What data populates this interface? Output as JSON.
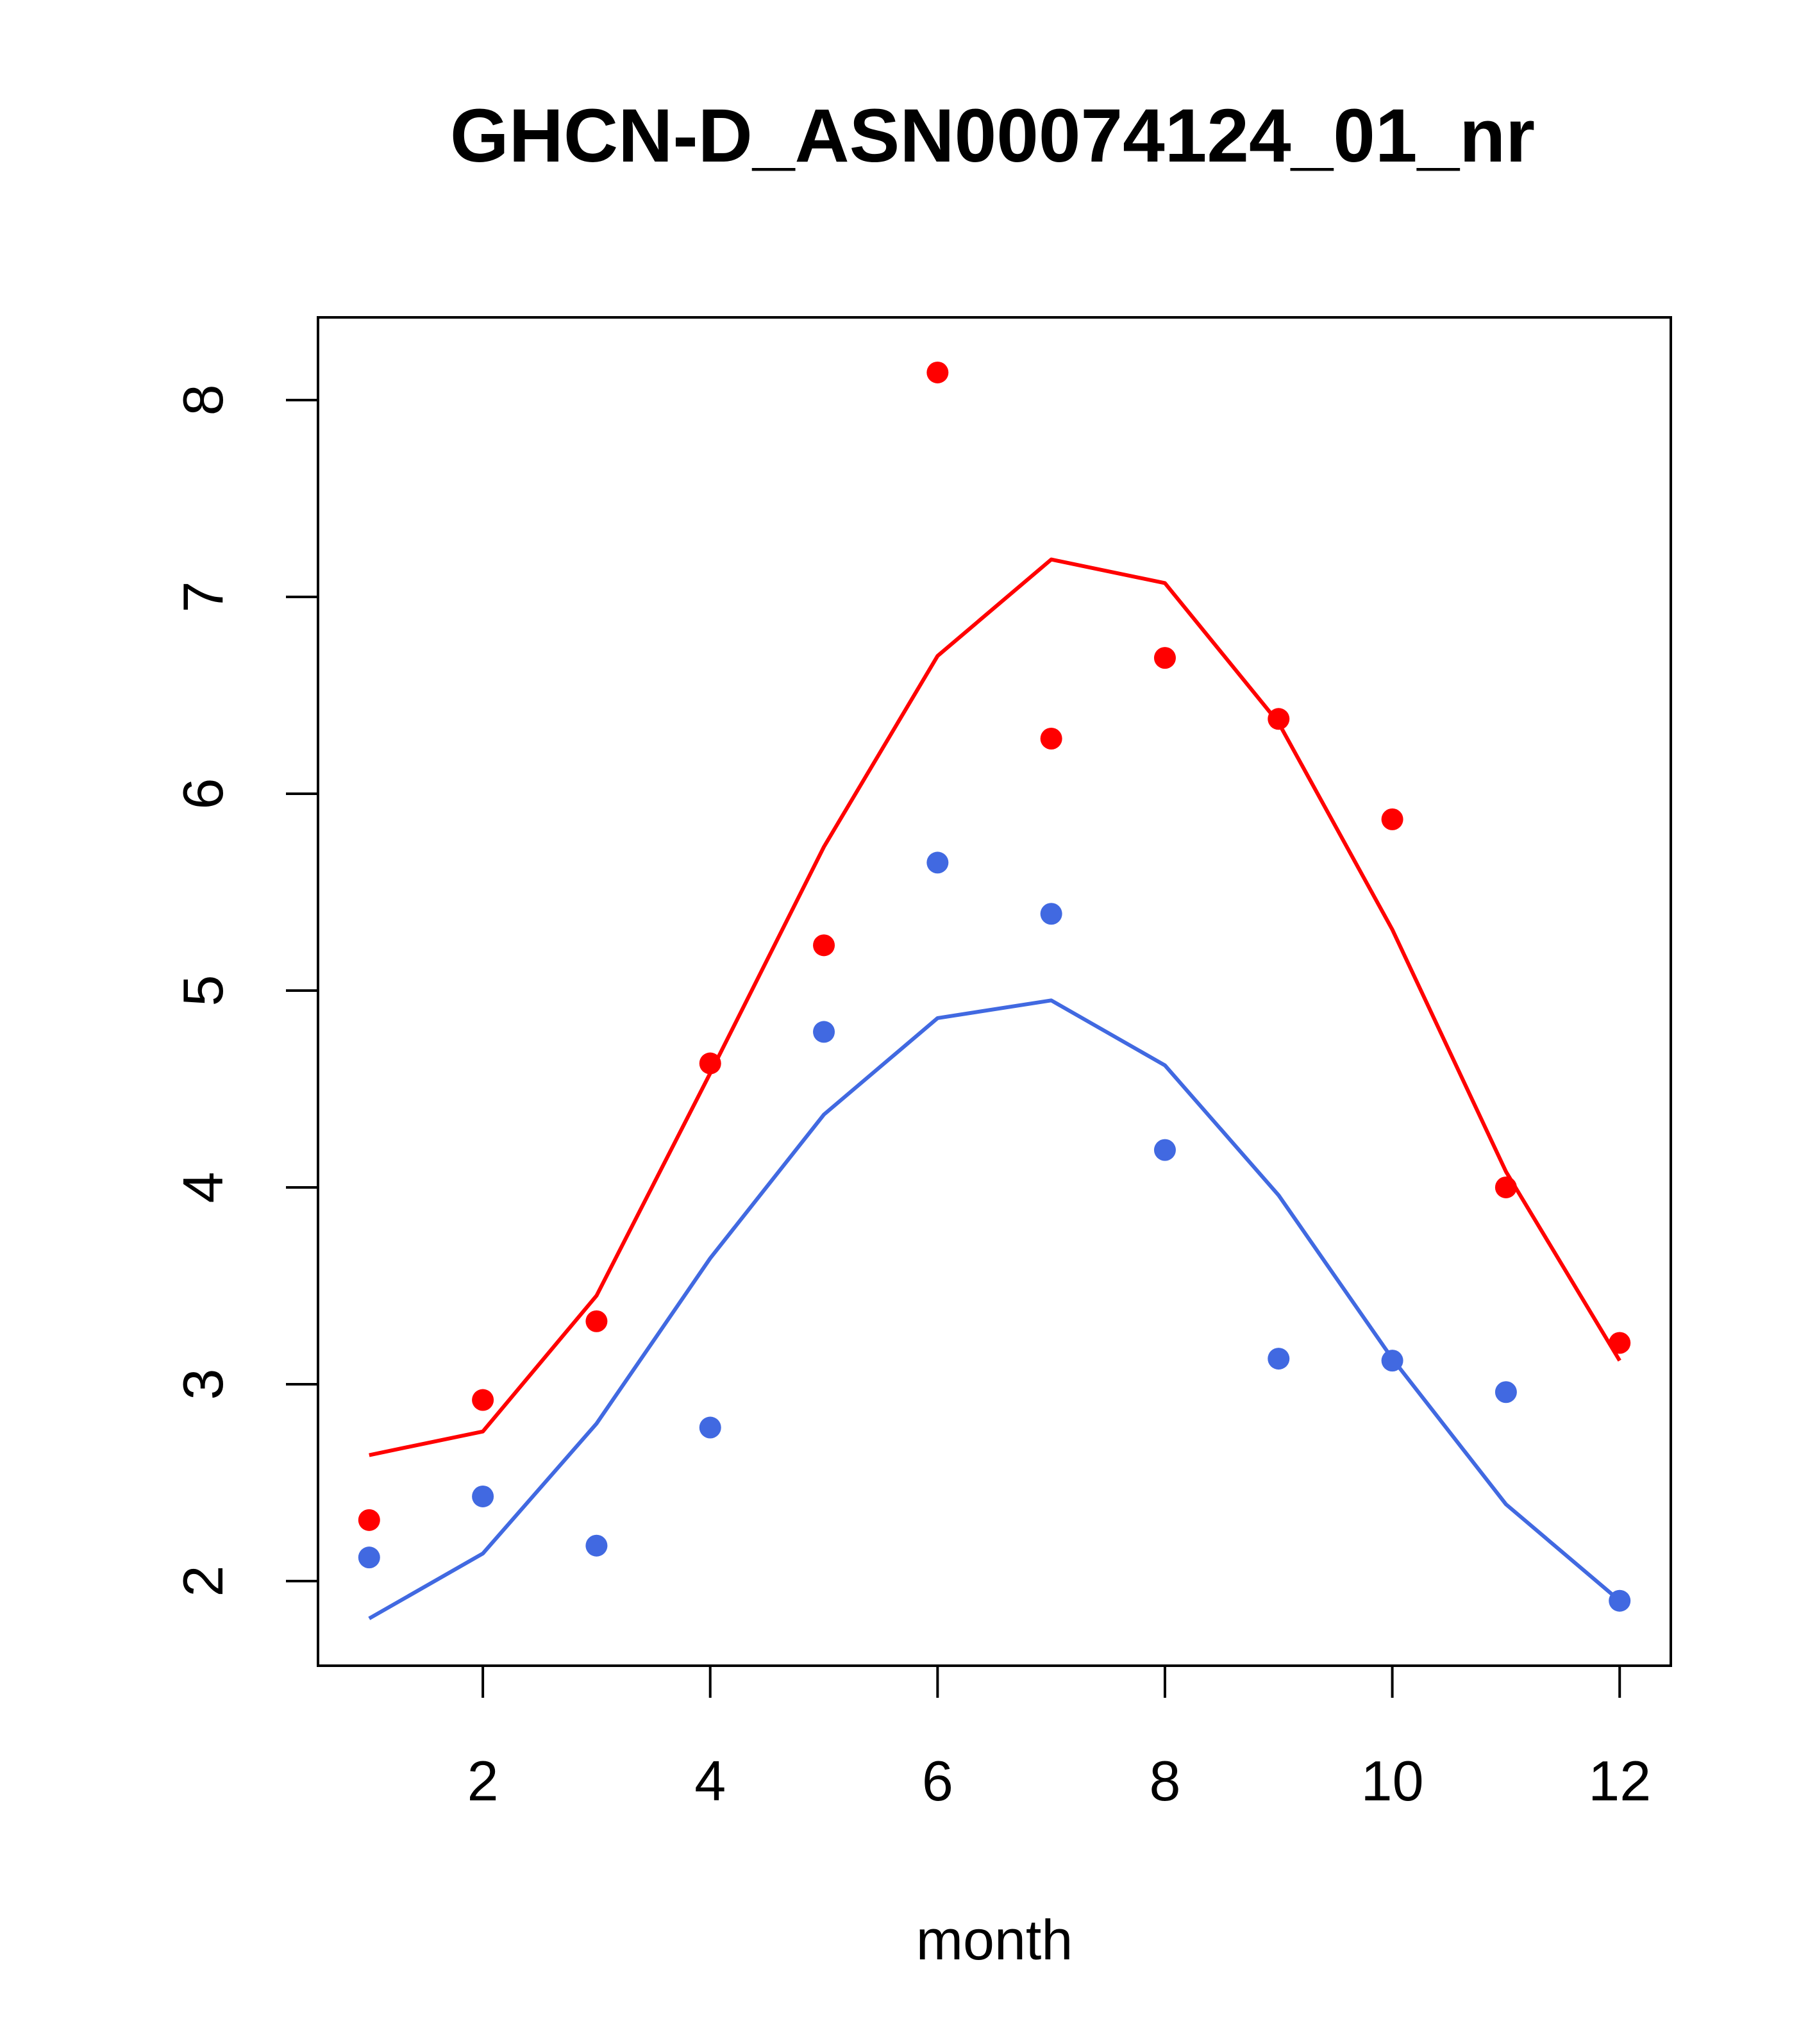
{
  "chart_data": {
    "type": "line",
    "title": "GHCN-D_ASN00074124_01_nr",
    "xlabel": "month",
    "ylabel": "",
    "xlim": [
      0.55,
      12.45
    ],
    "ylim": [
      1.57,
      8.42
    ],
    "xticks": [
      2,
      4,
      6,
      8,
      10,
      12
    ],
    "yticks": [
      2,
      3,
      4,
      5,
      6,
      7,
      8
    ],
    "x": [
      1,
      2,
      3,
      4,
      5,
      6,
      7,
      8,
      9,
      10,
      11,
      12
    ],
    "grid": false,
    "legend": "none",
    "series": [
      {
        "color": "#ff0000",
        "points": [
          2.31,
          2.92,
          3.32,
          4.63,
          5.23,
          8.14,
          6.28,
          6.69,
          6.38,
          5.87,
          4.0,
          3.21
        ],
        "line": [
          2.64,
          2.76,
          3.45,
          4.58,
          5.73,
          6.7,
          7.19,
          7.07,
          6.36,
          5.31,
          4.08,
          3.12
        ]
      },
      {
        "color": "#4169e1",
        "points": [
          2.12,
          2.43,
          2.18,
          2.78,
          4.79,
          5.65,
          5.39,
          4.19,
          3.13,
          3.12,
          2.96,
          1.9
        ],
        "line": [
          1.81,
          2.14,
          2.8,
          3.64,
          4.37,
          4.86,
          4.95,
          4.62,
          3.96,
          3.13,
          2.39,
          1.9
        ]
      }
    ]
  }
}
